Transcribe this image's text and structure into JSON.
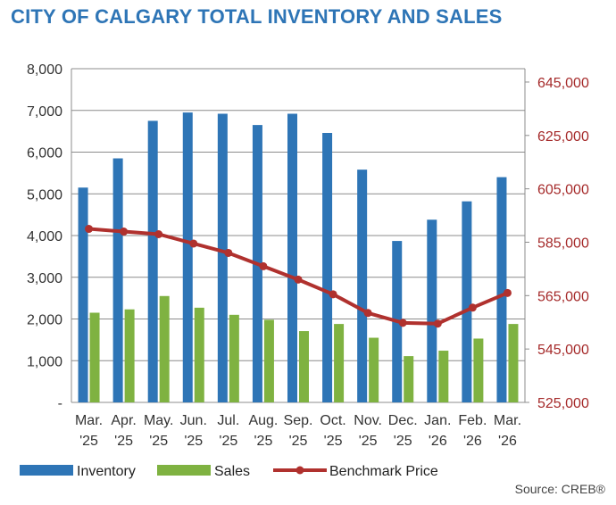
{
  "title": "CITY OF CALGARY TOTAL INVENTORY AND SALES",
  "source": "Source: CREB®",
  "colors": {
    "title": "#2E75B6",
    "inventory": "#2E75B6",
    "sales": "#7FB241",
    "benchmark": "#B0312E",
    "right_axis_text": "#A52A2A",
    "grid": "#8C8C8C"
  },
  "chart_data": {
    "type": "bar",
    "categories": [
      [
        "Mar.",
        "'25"
      ],
      [
        "Apr.",
        "'25"
      ],
      [
        "May.",
        "'25"
      ],
      [
        "Jun.",
        "'25"
      ],
      [
        "Jul.",
        "'25"
      ],
      [
        "Aug.",
        "'25"
      ],
      [
        "Sep.",
        "'25"
      ],
      [
        "Oct.",
        "'25"
      ],
      [
        "Nov.",
        "'25"
      ],
      [
        "Dec.",
        "'25"
      ],
      [
        "Jan.",
        "'26"
      ],
      [
        "Feb.",
        "'26"
      ],
      [
        "Mar.",
        "'26"
      ]
    ],
    "series": [
      {
        "name": "Inventory",
        "type": "bar",
        "axis": "left",
        "values": [
          5150,
          5850,
          6750,
          6950,
          6920,
          6650,
          6920,
          6460,
          5580,
          3870,
          4380,
          4820,
          5400
        ]
      },
      {
        "name": "Sales",
        "type": "bar",
        "axis": "left",
        "values": [
          2150,
          2230,
          2550,
          2270,
          2100,
          1980,
          1710,
          1880,
          1550,
          1110,
          1240,
          1530,
          1880
        ]
      },
      {
        "name": "Benchmark Price",
        "type": "line",
        "axis": "right",
        "values": [
          590000,
          589000,
          588000,
          584500,
          581000,
          576000,
          571000,
          565500,
          558500,
          554800,
          554500,
          560500,
          566000
        ]
      }
    ],
    "y_left": {
      "min": 0,
      "max": 8000,
      "tick_labels": [
        "-",
        "1,000",
        "2,000",
        "3,000",
        "4,000",
        "5,000",
        "6,000",
        "7,000",
        "8,000"
      ]
    },
    "y_right": {
      "min": 525000,
      "max": 650000,
      "tick_labels": [
        "525,000",
        "545,000",
        "565,000",
        "585,000",
        "605,000",
        "625,000",
        "645,000"
      ],
      "tick_values": [
        525000,
        545000,
        565000,
        585000,
        605000,
        625000,
        645000
      ]
    },
    "grid": true,
    "legend_position": "bottom-left"
  }
}
